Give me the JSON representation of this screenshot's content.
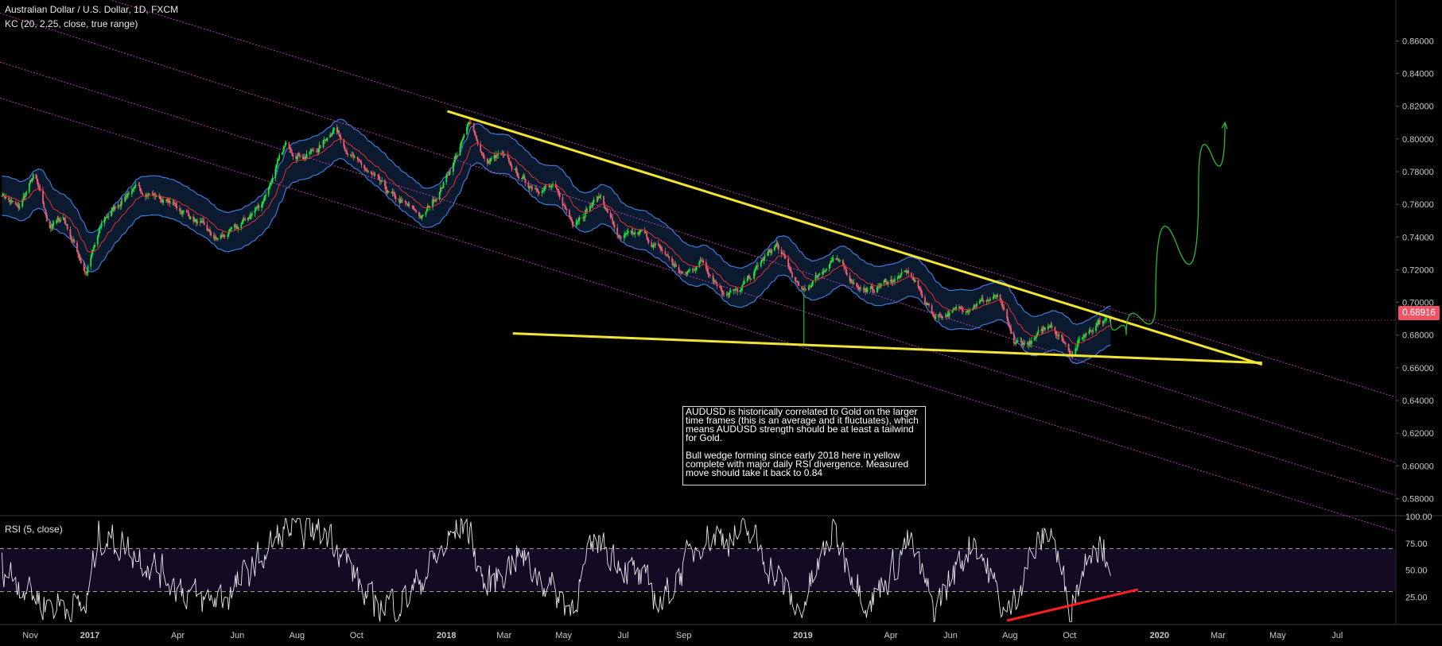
{
  "header": {
    "title": "Australian Dollar / U.S. Dollar, 1D, FXCM",
    "indicator": "KC (20, 2.25, close, true range)"
  },
  "rsi_header": {
    "label": "RSI (5, close)"
  },
  "annotation": {
    "paragraph1": "AUDUSD is historically correlated to Gold on the larger time frames (this is an average and it fluctuates), which means AUDUSD strength should be at least a tailwind for Gold.",
    "paragraph2": "Bull wedge forming since early 2018 here in yellow complete with major daily RSI divergence. Measured move should take it back to 0.84"
  },
  "last_price": "0.68916",
  "colors": {
    "background": "#000000",
    "candle_up": "#1fe33a",
    "candle_down": "#ef5b6b",
    "keltner_band": "#3f7ad9",
    "keltner_mid": "#e0302f",
    "keltner_fill": "#0b1a2e",
    "wedge": "#f2e432",
    "channel": "#b03fb0",
    "projection": "#2fb82f",
    "rsi_line": "#e8e8e8",
    "rsi_band_fill": "#140a24",
    "divergence": "#ff1e1e",
    "price_badge": "#f05466"
  },
  "chart_data": {
    "type": "line",
    "price_axis": {
      "ticks": [
        "0.58000",
        "0.60000",
        "0.62000",
        "0.64000",
        "0.66000",
        "0.68000",
        "0.70000",
        "0.72000",
        "0.74000",
        "0.76000",
        "0.78000",
        "0.80000",
        "0.82000",
        "0.84000",
        "0.86000"
      ],
      "range": [
        0.57,
        0.885
      ]
    },
    "rsi_axis": {
      "ticks": [
        "25.00",
        "50.00",
        "75.00",
        "100.00"
      ],
      "range": [
        0,
        100
      ],
      "bands": [
        30,
        70
      ]
    },
    "time_axis": {
      "labels": [
        "Nov",
        "2017",
        "Apr",
        "Jun",
        "Aug",
        "Oct",
        "2018",
        "Mar",
        "May",
        "Jul",
        "Sep",
        "2019",
        "Apr",
        "Jun",
        "Aug",
        "Oct",
        "2020",
        "Mar",
        "May",
        "Jul"
      ],
      "dates": [
        "2016-11-01",
        "2017-01-01",
        "2017-04-01",
        "2017-06-01",
        "2017-08-01",
        "2017-10-01",
        "2018-01-01",
        "2018-03-01",
        "2018-05-01",
        "2018-07-01",
        "2018-09-01",
        "2019-01-01",
        "2019-04-01",
        "2019-06-01",
        "2019-08-01",
        "2019-10-01",
        "2020-01-01",
        "2020-03-01",
        "2020-05-01",
        "2020-07-01"
      ],
      "range": [
        "2016-10-01",
        "2020-08-30"
      ]
    },
    "price_path": [
      [
        "2016-10-01",
        0.768
      ],
      [
        "2016-10-20",
        0.757
      ],
      [
        "2016-11-05",
        0.778
      ],
      [
        "2016-11-20",
        0.746
      ],
      [
        "2016-12-05",
        0.752
      ],
      [
        "2016-12-28",
        0.718
      ],
      [
        "2017-01-15",
        0.75
      ],
      [
        "2017-02-10",
        0.768
      ],
      [
        "2017-03-01",
        0.768
      ],
      [
        "2017-03-20",
        0.762
      ],
      [
        "2017-04-10",
        0.755
      ],
      [
        "2017-05-10",
        0.738
      ],
      [
        "2017-06-01",
        0.745
      ],
      [
        "2017-06-25",
        0.76
      ],
      [
        "2017-07-20",
        0.795
      ],
      [
        "2017-08-10",
        0.79
      ],
      [
        "2017-08-25",
        0.795
      ],
      [
        "2017-09-08",
        0.808
      ],
      [
        "2017-09-30",
        0.786
      ],
      [
        "2017-10-15",
        0.778
      ],
      [
        "2017-11-05",
        0.765
      ],
      [
        "2017-12-08",
        0.752
      ],
      [
        "2017-12-28",
        0.772
      ],
      [
        "2018-01-15",
        0.795
      ],
      [
        "2018-01-26",
        0.811
      ],
      [
        "2018-02-10",
        0.785
      ],
      [
        "2018-02-25",
        0.79
      ],
      [
        "2018-03-25",
        0.772
      ],
      [
        "2018-04-20",
        0.77
      ],
      [
        "2018-05-10",
        0.75
      ],
      [
        "2018-06-08",
        0.765
      ],
      [
        "2018-06-28",
        0.738
      ],
      [
        "2018-07-20",
        0.742
      ],
      [
        "2018-08-15",
        0.728
      ],
      [
        "2018-09-01",
        0.716
      ],
      [
        "2018-09-20",
        0.726
      ],
      [
        "2018-10-10",
        0.708
      ],
      [
        "2018-10-28",
        0.706
      ],
      [
        "2018-11-20",
        0.725
      ],
      [
        "2018-12-05",
        0.735
      ],
      [
        "2018-12-31",
        0.705
      ],
      [
        "2019-01-15",
        0.716
      ],
      [
        "2019-02-01",
        0.727
      ],
      [
        "2019-02-20",
        0.714
      ],
      [
        "2019-03-10",
        0.706
      ],
      [
        "2019-03-25",
        0.712
      ],
      [
        "2019-04-20",
        0.718
      ],
      [
        "2019-05-15",
        0.692
      ],
      [
        "2019-06-10",
        0.695
      ],
      [
        "2019-06-25",
        0.7
      ],
      [
        "2019-07-20",
        0.703
      ],
      [
        "2019-08-05",
        0.674
      ],
      [
        "2019-08-25",
        0.676
      ],
      [
        "2019-09-12",
        0.688
      ],
      [
        "2019-10-02",
        0.67
      ],
      [
        "2019-10-20",
        0.683
      ],
      [
        "2019-11-01",
        0.69
      ],
      [
        "2019-11-12",
        0.689
      ]
    ],
    "rsi_path": [
      [
        "2016-10-01",
        55
      ],
      [
        "2016-11-15",
        20
      ],
      [
        "2016-12-28",
        15
      ],
      [
        "2017-01-10",
        84
      ],
      [
        "2017-02-15",
        68
      ],
      [
        "2017-04-25",
        20
      ],
      [
        "2017-05-25",
        28
      ],
      [
        "2017-07-20",
        88
      ],
      [
        "2017-09-05",
        86
      ],
      [
        "2017-10-15",
        18
      ],
      [
        "2017-11-20",
        22
      ],
      [
        "2018-01-20",
        97
      ],
      [
        "2018-02-10",
        32
      ],
      [
        "2018-03-15",
        65
      ],
      [
        "2018-05-08",
        15
      ],
      [
        "2018-06-05",
        80
      ],
      [
        "2018-08-10",
        20
      ],
      [
        "2018-09-20",
        82
      ],
      [
        "2018-11-10",
        82
      ],
      [
        "2018-12-28",
        10
      ],
      [
        "2019-02-01",
        85
      ],
      [
        "2019-03-10",
        18
      ],
      [
        "2019-04-20",
        78
      ],
      [
        "2019-05-15",
        12
      ],
      [
        "2019-06-25",
        82
      ],
      [
        "2019-07-29",
        5
      ],
      [
        "2019-08-20",
        60
      ],
      [
        "2019-09-12",
        89
      ],
      [
        "2019-10-01",
        14
      ],
      [
        "2019-10-25",
        80
      ],
      [
        "2019-11-12",
        62
      ]
    ],
    "keltner_width": 0.012,
    "wedge_upper": [
      [
        "2018-01-02",
        0.817
      ],
      [
        "2020-04-15",
        0.662
      ]
    ],
    "wedge_lower": [
      [
        "2018-03-10",
        0.681
      ],
      [
        "2020-04-15",
        0.663
      ]
    ],
    "channel_lines": [
      [
        [
          "2016-10-01",
          0.906
        ],
        [
          "2020-08-30",
          0.642
        ]
      ],
      [
        [
          "2016-10-01",
          0.877
        ],
        [
          "2020-08-30",
          0.602
        ]
      ],
      [
        [
          "2016-10-01",
          0.847
        ],
        [
          "2020-08-30",
          0.582
        ]
      ],
      [
        [
          "2016-10-01",
          0.825
        ],
        [
          "2020-08-30",
          0.56
        ]
      ]
    ],
    "projection_path": [
      [
        "2019-11-12",
        0.689
      ],
      [
        "2019-11-28",
        0.68
      ],
      [
        "2019-12-28",
        0.7
      ],
      [
        "2020-02-10",
        0.77
      ],
      [
        "2020-03-08",
        0.81
      ]
    ],
    "rsi_divergence": [
      [
        "2019-07-29",
        3
      ],
      [
        "2019-12-10",
        32
      ]
    ]
  }
}
